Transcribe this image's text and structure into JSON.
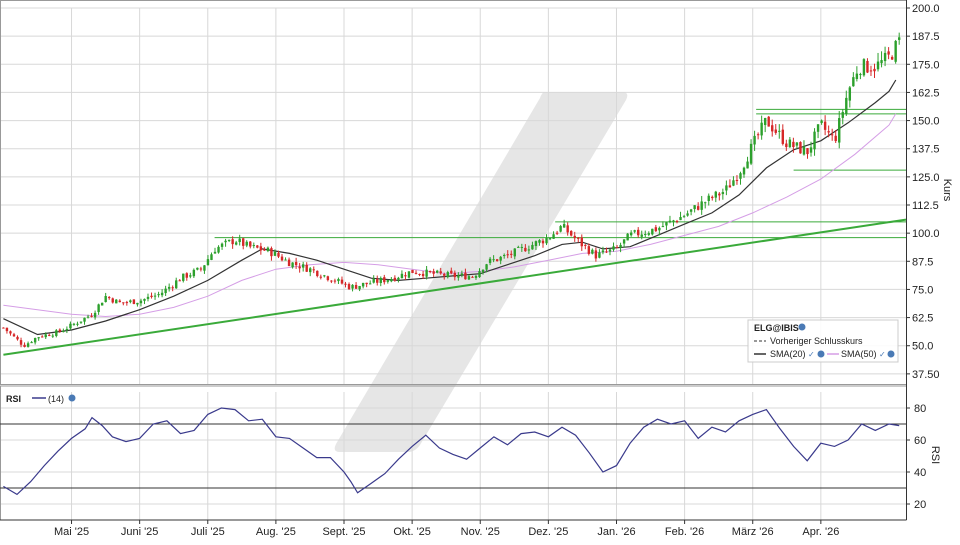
{
  "chart_data": [
    {
      "type": "candlestick",
      "ylabel": "Kurs",
      "ylim": [
        33,
        200
      ],
      "y_ticks": [
        "200.0",
        "187.5",
        "175.0",
        "162.5",
        "150.0",
        "137.5",
        "125.0",
        "112.5",
        "100.0",
        "87.5",
        "75.0",
        "62.5",
        "50.0",
        "37.50"
      ],
      "x_ticks": [
        "Mai '25",
        "Juni '25",
        "Juli '25",
        "Aug. '25",
        "Sept. '25",
        "Okt. '25",
        "Nov. '25",
        "Dez. '25",
        "Jan. '26",
        "Feb. '26",
        "März '26",
        "Apr. '26"
      ],
      "x_tick_months": [
        1,
        2,
        3,
        4,
        5,
        6,
        7,
        8,
        9,
        10,
        11,
        12
      ],
      "x_start_month": -0.05,
      "x_end_month": 13.25,
      "price_path": [
        [
          0,
          58
        ],
        [
          0.3,
          50
        ],
        [
          0.5,
          54
        ],
        [
          0.8,
          56
        ],
        [
          1.0,
          59
        ],
        [
          1.3,
          64
        ],
        [
          1.5,
          72
        ],
        [
          1.7,
          69
        ],
        [
          2.0,
          70
        ],
        [
          2.3,
          73
        ],
        [
          2.6,
          80
        ],
        [
          2.9,
          84
        ],
        [
          3.1,
          93
        ],
        [
          3.4,
          97
        ],
        [
          3.6,
          94
        ],
        [
          3.9,
          92
        ],
        [
          4.2,
          87
        ],
        [
          4.5,
          84
        ],
        [
          4.8,
          80
        ],
        [
          5.1,
          76
        ],
        [
          5.4,
          78
        ],
        [
          5.7,
          80
        ],
        [
          6.0,
          83
        ],
        [
          6.3,
          82
        ],
        [
          6.6,
          81
        ],
        [
          6.9,
          81
        ],
        [
          7.1,
          87
        ],
        [
          7.4,
          90
        ],
        [
          7.7,
          94
        ],
        [
          8.0,
          98
        ],
        [
          8.2,
          103
        ],
        [
          8.45,
          96
        ],
        [
          8.7,
          90
        ],
        [
          9.0,
          93
        ],
        [
          9.2,
          99
        ],
        [
          9.6,
          102
        ],
        [
          10.0,
          108
        ],
        [
          10.3,
          114
        ],
        [
          10.6,
          119
        ],
        [
          10.8,
          127
        ],
        [
          11.0,
          139
        ],
        [
          11.2,
          150
        ],
        [
          11.5,
          140
        ],
        [
          11.8,
          136
        ],
        [
          12.0,
          148
        ],
        [
          12.2,
          141
        ],
        [
          12.4,
          163
        ],
        [
          12.55,
          174
        ],
        [
          12.8,
          174
        ],
        [
          13.0,
          178
        ],
        [
          13.15,
          185
        ]
      ],
      "sma20_path": [
        [
          0,
          62
        ],
        [
          0.5,
          55
        ],
        [
          1.0,
          57
        ],
        [
          1.5,
          61
        ],
        [
          2.0,
          66
        ],
        [
          2.5,
          72
        ],
        [
          3.0,
          79
        ],
        [
          3.5,
          88
        ],
        [
          3.8,
          93
        ],
        [
          4.2,
          91
        ],
        [
          4.6,
          88
        ],
        [
          5.0,
          84
        ],
        [
          5.4,
          80
        ],
        [
          5.8,
          79
        ],
        [
          6.2,
          80
        ],
        [
          6.6,
          81
        ],
        [
          7.0,
          82
        ],
        [
          7.4,
          86
        ],
        [
          7.8,
          90
        ],
        [
          8.2,
          95
        ],
        [
          8.5,
          96
        ],
        [
          8.8,
          93
        ],
        [
          9.2,
          94
        ],
        [
          9.6,
          99
        ],
        [
          10.0,
          104
        ],
        [
          10.4,
          109
        ],
        [
          10.8,
          117
        ],
        [
          11.2,
          129
        ],
        [
          11.6,
          137
        ],
        [
          12.0,
          141
        ],
        [
          12.4,
          149
        ],
        [
          12.8,
          158
        ],
        [
          13.0,
          163
        ],
        [
          13.1,
          168
        ]
      ],
      "sma50_path": [
        [
          0,
          68
        ],
        [
          0.5,
          66
        ],
        [
          1.0,
          64
        ],
        [
          1.5,
          63
        ],
        [
          2.0,
          64
        ],
        [
          2.5,
          67
        ],
        [
          3.0,
          72
        ],
        [
          3.5,
          79
        ],
        [
          4.0,
          84
        ],
        [
          4.5,
          86
        ],
        [
          5.0,
          87
        ],
        [
          5.5,
          86
        ],
        [
          6.0,
          84
        ],
        [
          6.5,
          82
        ],
        [
          7.0,
          83
        ],
        [
          7.5,
          85
        ],
        [
          8.0,
          88
        ],
        [
          8.5,
          91
        ],
        [
          9.0,
          92
        ],
        [
          9.5,
          95
        ],
        [
          10.0,
          99
        ],
        [
          10.5,
          103
        ],
        [
          11.0,
          109
        ],
        [
          11.5,
          116
        ],
        [
          12.0,
          124
        ],
        [
          12.5,
          135
        ],
        [
          13.0,
          148
        ],
        [
          13.1,
          153
        ]
      ],
      "hlines": [
        153,
        155,
        128,
        98,
        105
      ],
      "trendline": [
        [
          0,
          46
        ],
        [
          13.25,
          106
        ]
      ],
      "legend": {
        "symbol": "ELG@IBIS",
        "prev_close": "Vorheriger Schlusskurs",
        "sma20": "SMA(20)",
        "sma50": "SMA(50)"
      },
      "colors": {
        "up": "#2ca02c",
        "down": "#d62728",
        "sma20": "#333333",
        "sma50": "#d59ee6",
        "support": "#3aaa3a",
        "grid": "#d8d8d8",
        "axis": "#333333"
      }
    },
    {
      "type": "line",
      "label": "RSI",
      "legend": "(14)",
      "ylabel": "RSI",
      "ylim": [
        10,
        90
      ],
      "y_ticks": [
        "80",
        "60",
        "40",
        "20"
      ],
      "levels": [
        70,
        30
      ],
      "rsi_path": [
        [
          0,
          31
        ],
        [
          0.2,
          26
        ],
        [
          0.4,
          34
        ],
        [
          0.6,
          44
        ],
        [
          0.8,
          53
        ],
        [
          1.0,
          61
        ],
        [
          1.2,
          67
        ],
        [
          1.3,
          74
        ],
        [
          1.45,
          69
        ],
        [
          1.6,
          62
        ],
        [
          1.8,
          59
        ],
        [
          2.0,
          61
        ],
        [
          2.2,
          70
        ],
        [
          2.4,
          72
        ],
        [
          2.6,
          64
        ],
        [
          2.8,
          66
        ],
        [
          3.0,
          76
        ],
        [
          3.2,
          80
        ],
        [
          3.4,
          79
        ],
        [
          3.6,
          72
        ],
        [
          3.8,
          73
        ],
        [
          4.0,
          62
        ],
        [
          4.2,
          61
        ],
        [
          4.4,
          55
        ],
        [
          4.6,
          49
        ],
        [
          4.8,
          49
        ],
        [
          5.0,
          40
        ],
        [
          5.1,
          34
        ],
        [
          5.2,
          27
        ],
        [
          5.4,
          33
        ],
        [
          5.6,
          39
        ],
        [
          5.8,
          48
        ],
        [
          6.0,
          56
        ],
        [
          6.2,
          63
        ],
        [
          6.4,
          55
        ],
        [
          6.6,
          51
        ],
        [
          6.8,
          48
        ],
        [
          7.0,
          55
        ],
        [
          7.2,
          62
        ],
        [
          7.4,
          57
        ],
        [
          7.6,
          64
        ],
        [
          7.8,
          65
        ],
        [
          8.0,
          62
        ],
        [
          8.2,
          68
        ],
        [
          8.4,
          63
        ],
        [
          8.6,
          52
        ],
        [
          8.8,
          40
        ],
        [
          9.0,
          44
        ],
        [
          9.2,
          58
        ],
        [
          9.4,
          68
        ],
        [
          9.6,
          73
        ],
        [
          9.8,
          70
        ],
        [
          10.0,
          72
        ],
        [
          10.2,
          61
        ],
        [
          10.4,
          68
        ],
        [
          10.6,
          65
        ],
        [
          10.8,
          72
        ],
        [
          11.0,
          76
        ],
        [
          11.2,
          79
        ],
        [
          11.4,
          67
        ],
        [
          11.6,
          56
        ],
        [
          11.8,
          47
        ],
        [
          12.0,
          58
        ],
        [
          12.2,
          56
        ],
        [
          12.4,
          60
        ],
        [
          12.6,
          70
        ],
        [
          12.8,
          66
        ],
        [
          13.0,
          70
        ],
        [
          13.15,
          69
        ]
      ],
      "colors": {
        "line": "#3a3a8c",
        "level": "#333333"
      }
    }
  ]
}
